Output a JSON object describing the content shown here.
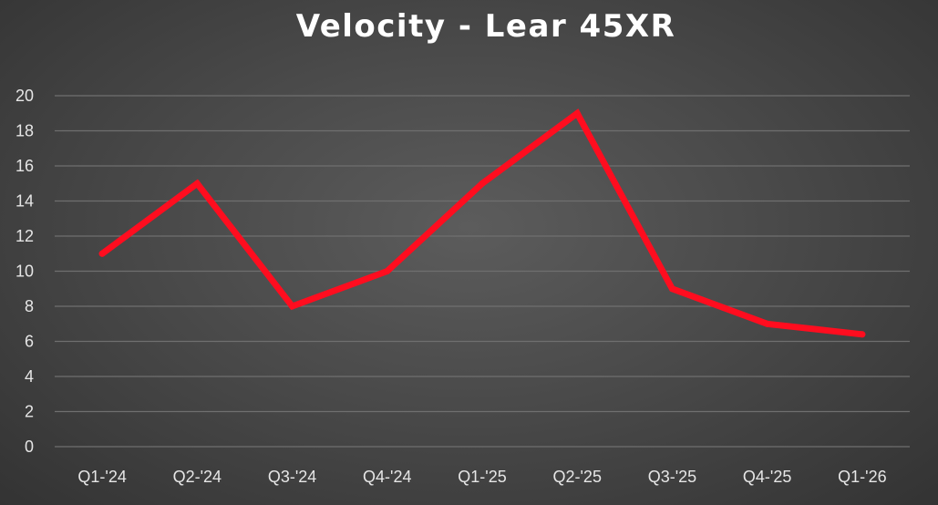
{
  "chart_data": {
    "type": "line",
    "title": "Velocity - Lear 45XR",
    "categories": [
      "Q1-'24",
      "Q2-'24",
      "Q3-'24",
      "Q4-'24",
      "Q1-'25",
      "Q2-'25",
      "Q3-'25",
      "Q4-'25",
      "Q1-'26"
    ],
    "series": [
      {
        "values": [
          11,
          15,
          8,
          10,
          15,
          19,
          9,
          7,
          6.4
        ],
        "color": "#ff0d1f"
      }
    ],
    "ylim": [
      0,
      20
    ],
    "yticks": [
      0,
      2,
      4,
      6,
      8,
      10,
      12,
      14,
      16,
      18,
      20
    ],
    "xlabel": "",
    "ylabel": "",
    "grid": true,
    "legend": "none"
  }
}
